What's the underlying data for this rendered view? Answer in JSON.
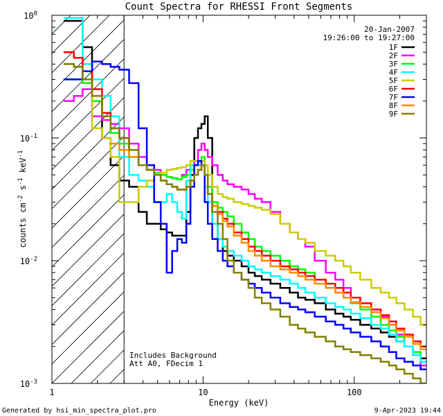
{
  "chart_data": {
    "type": "line",
    "title": "Count Spectra for RHESSI Front Segments",
    "xlabel": "Energy (keV)",
    "ylabel_parts": {
      "a": "counts cm",
      "b": "-2",
      "c": " s",
      "d": "-1",
      "e": " keV",
      "f": "-1"
    },
    "xscale": "log",
    "yscale": "log",
    "xlim": [
      1.0,
      300.0
    ],
    "ylim": [
      0.001,
      1.0
    ],
    "x_ticks": [
      {
        "v": 1,
        "label": "1"
      },
      {
        "v": 10,
        "label": "10"
      },
      {
        "v": 100,
        "label": "100"
      }
    ],
    "y_ticks": [
      {
        "v": 1.0,
        "base": "10",
        "exp": "0"
      },
      {
        "v": 0.1,
        "base": "10",
        "exp": "-1"
      },
      {
        "v": 0.01,
        "base": "10",
        "exp": "-2"
      },
      {
        "v": 0.001,
        "base": "10",
        "exp": "-3"
      }
    ],
    "shaded_region_keV": [
      1.0,
      3.0
    ],
    "date": "20-Jan-2007",
    "time_range": "19:26:00 to 19:27:00",
    "annotation_lines": [
      "Includes Background",
      "Att A0, FDecim 1"
    ],
    "series": [
      {
        "name": "1F",
        "color": "#000000",
        "x": [
          1.3,
          1.5,
          1.7,
          2.0,
          2.3,
          2.6,
          3.0,
          3.5,
          4.0,
          4.5,
          5.0,
          5.5,
          6.0,
          6.5,
          7.0,
          7.5,
          8.0,
          8.5,
          9.0,
          9.5,
          10.0,
          10.5,
          11.0,
          12.0,
          13.0,
          14.0,
          15.0,
          17.0,
          19.0,
          21.0,
          23.0,
          26.0,
          30.0,
          35.0,
          40.0,
          45.0,
          50.0,
          60.0,
          70.0,
          80.0,
          90.0,
          100.0,
          120.0,
          140.0,
          160.0,
          180.0,
          200.0,
          230.0,
          260.0,
          290.0
        ],
        "values": [
          0.9,
          0.9,
          0.55,
          0.2,
          0.1,
          0.06,
          0.045,
          0.04,
          0.025,
          0.02,
          0.02,
          0.018,
          0.017,
          0.016,
          0.016,
          0.016,
          0.025,
          0.05,
          0.1,
          0.12,
          0.13,
          0.15,
          0.1,
          0.02,
          0.015,
          0.012,
          0.011,
          0.01,
          0.009,
          0.008,
          0.0075,
          0.007,
          0.0065,
          0.006,
          0.0055,
          0.005,
          0.0048,
          0.0045,
          0.004,
          0.0037,
          0.0035,
          0.0033,
          0.003,
          0.0028,
          0.0026,
          0.0024,
          0.0022,
          0.002,
          0.0018,
          0.0016
        ]
      },
      {
        "name": "2F",
        "color": "#ff00ff",
        "x": [
          1.3,
          1.5,
          1.7,
          2.0,
          2.3,
          2.6,
          3.0,
          3.5,
          4.0,
          4.5,
          5.0,
          5.5,
          6.0,
          6.5,
          7.0,
          7.5,
          8.0,
          8.5,
          9.0,
          9.5,
          10.0,
          10.5,
          11.0,
          12.0,
          13.0,
          14.0,
          15.0,
          17.0,
          19.0,
          21.0,
          23.0,
          26.0,
          30.0,
          35.0,
          40.0,
          45.0,
          50.0,
          60.0,
          70.0,
          80.0,
          90.0,
          100.0,
          120.0,
          140.0,
          160.0,
          180.0,
          200.0,
          230.0,
          260.0,
          290.0
        ],
        "values": [
          0.2,
          0.22,
          0.25,
          0.15,
          0.14,
          0.13,
          0.12,
          0.09,
          0.07,
          0.06,
          0.055,
          0.05,
          0.048,
          0.047,
          0.046,
          0.05,
          0.055,
          0.06,
          0.065,
          0.08,
          0.09,
          0.08,
          0.07,
          0.06,
          0.05,
          0.045,
          0.042,
          0.04,
          0.038,
          0.035,
          0.032,
          0.03,
          0.025,
          0.02,
          0.017,
          0.015,
          0.013,
          0.01,
          0.008,
          0.007,
          0.006,
          0.005,
          0.0045,
          0.004,
          0.0035,
          0.003,
          0.0025,
          0.002,
          0.0017,
          0.0014
        ]
      },
      {
        "name": "3F",
        "color": "#00ff00",
        "x": [
          1.3,
          1.5,
          1.7,
          2.0,
          2.3,
          2.6,
          3.0,
          3.5,
          4.0,
          4.5,
          5.0,
          5.5,
          6.0,
          6.5,
          7.0,
          7.5,
          8.0,
          8.5,
          9.0,
          9.5,
          10.0,
          10.5,
          11.0,
          12.0,
          13.0,
          14.0,
          15.0,
          17.0,
          19.0,
          21.0,
          23.0,
          26.0,
          30.0,
          35.0,
          40.0,
          45.0,
          50.0,
          60.0,
          70.0,
          80.0,
          90.0,
          100.0,
          120.0,
          140.0,
          160.0,
          180.0,
          200.0,
          230.0,
          260.0,
          290.0
        ],
        "values": [
          0.3,
          0.3,
          0.28,
          0.2,
          0.15,
          0.11,
          0.09,
          0.07,
          0.06,
          0.055,
          0.052,
          0.05,
          0.048,
          0.047,
          0.046,
          0.048,
          0.05,
          0.055,
          0.06,
          0.065,
          0.07,
          0.06,
          0.04,
          0.03,
          0.027,
          0.025,
          0.023,
          0.02,
          0.017,
          0.015,
          0.013,
          0.012,
          0.011,
          0.01,
          0.009,
          0.0085,
          0.008,
          0.007,
          0.006,
          0.0055,
          0.005,
          0.0045,
          0.004,
          0.0035,
          0.003,
          0.0027,
          0.0024,
          0.002,
          0.0018,
          0.0015
        ]
      },
      {
        "name": "4F",
        "color": "#00ffff",
        "x": [
          1.3,
          1.5,
          1.7,
          2.0,
          2.3,
          2.6,
          3.0,
          3.5,
          4.0,
          4.5,
          5.0,
          5.5,
          6.0,
          6.5,
          7.0,
          7.5,
          8.0,
          8.5,
          9.0,
          9.5,
          10.0,
          10.5,
          11.0,
          12.0,
          13.0,
          14.0,
          15.0,
          17.0,
          19.0,
          21.0,
          23.0,
          26.0,
          30.0,
          35.0,
          40.0,
          45.0,
          50.0,
          60.0,
          70.0,
          80.0,
          90.0,
          100.0,
          120.0,
          140.0,
          160.0,
          180.0,
          200.0,
          230.0,
          260.0,
          290.0
        ],
        "values": [
          0.95,
          0.95,
          0.4,
          0.3,
          0.22,
          0.15,
          0.07,
          0.05,
          0.045,
          0.04,
          0.03,
          0.03,
          0.035,
          0.03,
          0.025,
          0.022,
          0.045,
          0.06,
          0.06,
          0.06,
          0.06,
          0.04,
          0.03,
          0.02,
          0.015,
          0.013,
          0.012,
          0.011,
          0.01,
          0.009,
          0.0085,
          0.008,
          0.0075,
          0.007,
          0.0065,
          0.006,
          0.0055,
          0.005,
          0.0045,
          0.0042,
          0.004,
          0.0037,
          0.0034,
          0.003,
          0.0028,
          0.0025,
          0.0022,
          0.002,
          0.0017,
          0.0015
        ]
      },
      {
        "name": "5F",
        "color": "#cccc00",
        "x": [
          1.3,
          1.5,
          1.7,
          2.0,
          2.3,
          2.6,
          3.0,
          3.5,
          4.0,
          4.5,
          5.0,
          5.5,
          6.0,
          6.5,
          7.0,
          7.5,
          8.0,
          8.5,
          9.0,
          9.5,
          10.0,
          10.5,
          11.0,
          12.0,
          13.0,
          14.0,
          15.0,
          17.0,
          19.0,
          21.0,
          23.0,
          26.0,
          30.0,
          35.0,
          40.0,
          45.0,
          50.0,
          60.0,
          70.0,
          80.0,
          90.0,
          100.0,
          120.0,
          140.0,
          160.0,
          180.0,
          200.0,
          230.0,
          260.0,
          290.0
        ],
        "values": [
          0.4,
          0.38,
          0.35,
          0.12,
          0.1,
          0.07,
          0.03,
          0.03,
          0.04,
          0.045,
          0.05,
          0.052,
          0.055,
          0.056,
          0.057,
          0.058,
          0.06,
          0.065,
          0.065,
          0.065,
          0.065,
          0.06,
          0.05,
          0.04,
          0.035,
          0.033,
          0.032,
          0.03,
          0.029,
          0.028,
          0.027,
          0.026,
          0.024,
          0.02,
          0.017,
          0.015,
          0.014,
          0.012,
          0.011,
          0.01,
          0.009,
          0.008,
          0.007,
          0.006,
          0.0055,
          0.005,
          0.0045,
          0.004,
          0.0035,
          0.003
        ]
      },
      {
        "name": "6F",
        "color": "#ff0000",
        "x": [
          1.3,
          1.5,
          1.7,
          2.0,
          2.3,
          2.6,
          3.0,
          3.5,
          4.0,
          4.5,
          5.0,
          5.5,
          6.0,
          6.5,
          7.0,
          7.5,
          8.0,
          8.5,
          9.0,
          9.5,
          10.0,
          10.5,
          11.0,
          12.0,
          13.0,
          14.0,
          15.0,
          17.0,
          19.0,
          21.0,
          23.0,
          26.0,
          30.0,
          35.0,
          40.0,
          45.0,
          50.0,
          60.0,
          70.0,
          80.0,
          90.0,
          100.0,
          120.0,
          140.0,
          160.0,
          180.0,
          200.0,
          230.0,
          260.0,
          290.0
        ],
        "values": [
          0.5,
          0.45,
          0.35,
          0.25,
          0.16,
          0.12,
          0.1,
          0.08,
          0.06,
          0.055,
          0.05,
          0.045,
          0.042,
          0.04,
          0.038,
          0.038,
          0.04,
          0.045,
          0.05,
          0.055,
          0.06,
          0.05,
          0.035,
          0.028,
          0.025,
          0.022,
          0.02,
          0.017,
          0.015,
          0.013,
          0.012,
          0.011,
          0.01,
          0.009,
          0.0085,
          0.008,
          0.0075,
          0.007,
          0.0065,
          0.006,
          0.0055,
          0.005,
          0.0045,
          0.004,
          0.0036,
          0.0032,
          0.0028,
          0.0025,
          0.0022,
          0.002
        ]
      },
      {
        "name": "7F",
        "color": "#0000ff",
        "x": [
          1.3,
          1.5,
          1.7,
          2.0,
          2.3,
          2.6,
          3.0,
          3.5,
          4.0,
          4.5,
          5.0,
          5.5,
          6.0,
          6.5,
          7.0,
          7.5,
          8.0,
          8.5,
          9.0,
          9.5,
          10.0,
          10.5,
          11.0,
          12.0,
          13.0,
          14.0,
          15.0,
          17.0,
          19.0,
          21.0,
          23.0,
          26.0,
          30.0,
          35.0,
          40.0,
          45.0,
          50.0,
          60.0,
          70.0,
          80.0,
          90.0,
          100.0,
          120.0,
          140.0,
          160.0,
          180.0,
          200.0,
          230.0,
          260.0,
          290.0
        ],
        "values": [
          0.3,
          0.3,
          0.35,
          0.42,
          0.4,
          0.38,
          0.36,
          0.28,
          0.12,
          0.06,
          0.03,
          0.02,
          0.008,
          0.012,
          0.015,
          0.014,
          0.02,
          0.04,
          0.06,
          0.065,
          0.06,
          0.03,
          0.02,
          0.015,
          0.012,
          0.01,
          0.009,
          0.008,
          0.007,
          0.0065,
          0.006,
          0.0055,
          0.005,
          0.0045,
          0.0042,
          0.004,
          0.0038,
          0.0035,
          0.0032,
          0.003,
          0.0028,
          0.0026,
          0.0024,
          0.0022,
          0.002,
          0.0018,
          0.0016,
          0.0015,
          0.0014,
          0.0013
        ]
      },
      {
        "name": "8F",
        "color": "#ff8c00",
        "x": [
          2.6,
          3.0,
          3.5,
          4.0,
          4.5,
          5.0,
          5.5,
          6.0,
          6.5,
          7.0,
          7.5,
          8.0,
          8.5,
          9.0,
          9.5,
          10.0,
          10.5,
          11.0,
          12.0,
          13.0,
          14.0,
          15.0,
          17.0,
          19.0,
          21.0,
          23.0,
          26.0,
          30.0,
          35.0,
          40.0,
          45.0,
          50.0,
          60.0,
          70.0,
          80.0,
          90.0,
          100.0,
          120.0,
          140.0,
          160.0,
          180.0,
          200.0,
          230.0,
          260.0,
          290.0
        ],
        "values": [
          0.09,
          0.08,
          0.07,
          0.06,
          0.055,
          0.05,
          0.045,
          0.042,
          0.04,
          0.038,
          0.038,
          0.04,
          0.045,
          0.05,
          0.055,
          0.06,
          0.05,
          0.035,
          0.028,
          0.024,
          0.021,
          0.019,
          0.016,
          0.014,
          0.012,
          0.011,
          0.01,
          0.009,
          0.0085,
          0.008,
          0.0075,
          0.007,
          0.0065,
          0.006,
          0.0055,
          0.005,
          0.0046,
          0.0042,
          0.0038,
          0.0034,
          0.003,
          0.0027,
          0.0024,
          0.0021,
          0.0019
        ]
      },
      {
        "name": "9F",
        "color": "#808000",
        "x": [
          1.3,
          1.5,
          1.7,
          2.0,
          2.3,
          2.6,
          3.0,
          3.5,
          4.0,
          4.5,
          5.0,
          5.5,
          6.0,
          6.5,
          7.0,
          7.5,
          8.0,
          8.5,
          9.0,
          9.5,
          10.0,
          10.5,
          11.0,
          12.0,
          13.0,
          14.0,
          15.0,
          17.0,
          19.0,
          21.0,
          23.0,
          26.0,
          30.0,
          35.0,
          40.0,
          45.0,
          50.0,
          60.0,
          70.0,
          80.0,
          90.0,
          100.0,
          120.0,
          140.0,
          160.0,
          180.0,
          200.0,
          230.0,
          260.0,
          290.0
        ],
        "values": [
          0.4,
          0.38,
          0.3,
          0.22,
          0.15,
          0.12,
          0.1,
          0.08,
          0.06,
          0.055,
          0.05,
          0.045,
          0.042,
          0.04,
          0.038,
          0.038,
          0.04,
          0.045,
          0.05,
          0.055,
          0.06,
          0.05,
          0.035,
          0.025,
          0.02,
          0.015,
          0.01,
          0.008,
          0.007,
          0.006,
          0.005,
          0.0045,
          0.004,
          0.0035,
          0.003,
          0.0028,
          0.0026,
          0.0024,
          0.0022,
          0.002,
          0.0019,
          0.0018,
          0.0017,
          0.0016,
          0.0015,
          0.0014,
          0.0013,
          0.0012,
          0.0011,
          0.001
        ]
      }
    ]
  },
  "footer": {
    "generated_by": "Generated by hsi_min_spectra_plot.pro",
    "timestamp": "9-Apr-2023 19:44"
  }
}
